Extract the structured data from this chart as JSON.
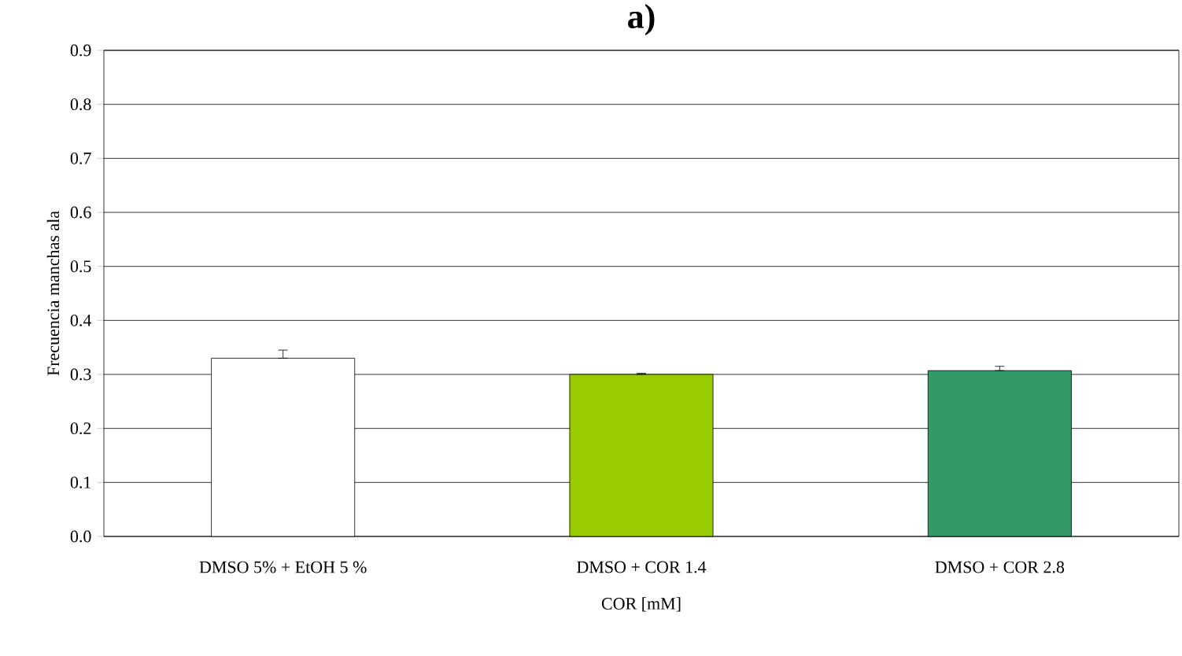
{
  "chart_data": {
    "type": "bar",
    "title": "a)",
    "xlabel": "COR [mM]",
    "ylabel": "Frecuencia manchas ala",
    "categories": [
      "DMSO 5% + EtOH 5 %",
      "DMSO + COR 1.4",
      "DMSO + COR 2.8"
    ],
    "values": [
      0.33,
      0.3,
      0.307
    ],
    "colors": [
      "#ffffff",
      "#99cc00",
      "#339966"
    ],
    "errors": [
      [
        0.33,
        0.345
      ],
      [
        0.3,
        0.302
      ],
      [
        0.307,
        0.315
      ]
    ],
    "ylim": [
      0,
      0.9
    ],
    "yticks": [
      {
        "value": 0,
        "label": "0.0"
      },
      0.1,
      0.2,
      0.3,
      0.4,
      0.5,
      0.6,
      0.7,
      0.8,
      0.9
    ],
    "grid": "y"
  }
}
